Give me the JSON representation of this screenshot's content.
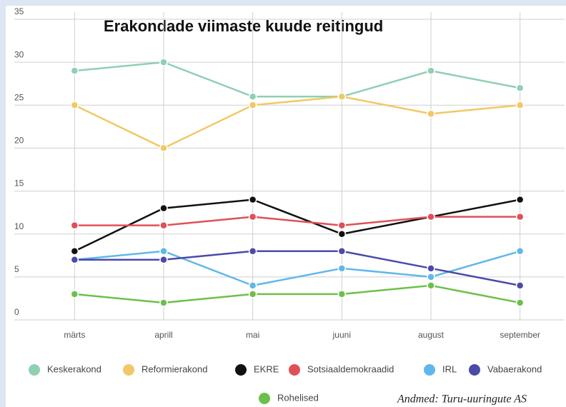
{
  "chart_data": {
    "type": "line",
    "title": "Erakondade viimaste kuude reitingud",
    "source": "Andmed: Turu-uuringute AS",
    "categories": [
      "märts",
      "aprill",
      "mai",
      "juuni",
      "august",
      "september"
    ],
    "series": [
      {
        "name": "Keskerakond",
        "color": "#8fd0b2",
        "values": [
          29,
          30,
          26,
          26,
          29,
          27
        ]
      },
      {
        "name": "Reformierakond",
        "color": "#f2c866",
        "values": [
          25,
          20,
          25,
          26,
          24,
          25
        ]
      },
      {
        "name": "EKRE",
        "color": "#111111",
        "values": [
          8,
          13,
          14,
          10,
          12,
          14
        ]
      },
      {
        "name": "Sotsiaaldemokraadid",
        "color": "#e05058",
        "values": [
          11,
          11,
          12,
          11,
          12,
          12
        ]
      },
      {
        "name": "IRL",
        "color": "#5fb8ea",
        "values": [
          7,
          8,
          4,
          6,
          5,
          8
        ]
      },
      {
        "name": "Vabaerakond",
        "color": "#4b4aa8",
        "values": [
          7,
          7,
          8,
          8,
          6,
          4
        ]
      },
      {
        "name": "Rohelised",
        "color": "#6cc04a",
        "values": [
          3,
          2,
          3,
          3,
          4,
          2
        ]
      }
    ],
    "ylim": [
      0,
      35
    ],
    "yticks": [
      0,
      5,
      10,
      15,
      20,
      25,
      30,
      35
    ],
    "grid": true,
    "legend": "bottom"
  }
}
